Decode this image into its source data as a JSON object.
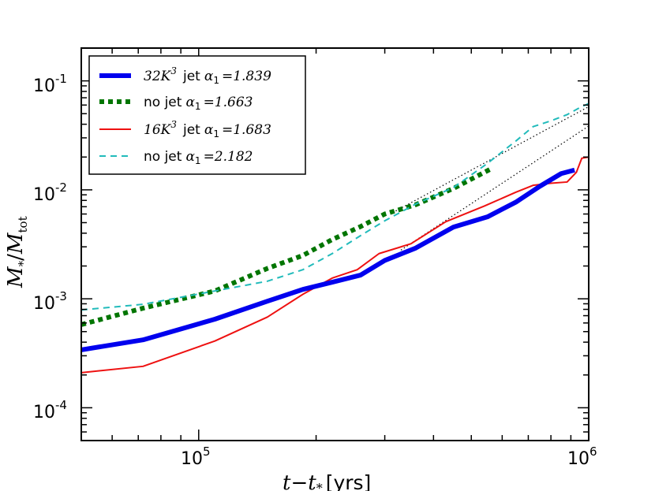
{
  "chart_data": {
    "type": "line",
    "title": "",
    "xscale": "log",
    "yscale": "log",
    "xlim": [
      50000,
      1000000
    ],
    "ylim": [
      5e-05,
      0.2
    ],
    "xlabel": "t−t",
    "xlabel_sub": "*",
    "xlabel_unit": "[yrs]",
    "ylabel": "M",
    "ylabel_sub": "*",
    "ylabel_denom": "M",
    "ylabel_denom_sub": "tot",
    "xticks": [
      {
        "value": 100000,
        "base": "10",
        "exp": "5"
      },
      {
        "value": 1000000,
        "base": "10",
        "exp": "6"
      }
    ],
    "yticks": [
      {
        "value": 0.0001,
        "base": "10",
        "exp": "-4"
      },
      {
        "value": 0.001,
        "base": "10",
        "exp": "-3"
      },
      {
        "value": 0.01,
        "base": "10",
        "exp": "-2"
      },
      {
        "value": 0.1,
        "base": "10",
        "exp": "-1"
      }
    ],
    "legend_position": "top-left",
    "series": [
      {
        "name": "32K³ jet",
        "legend_math": "32K",
        "legend_sup": "3",
        "legend_word": "jet",
        "alpha_text": "α",
        "alpha_sub": "1",
        "alpha_value": "=1.839",
        "color": "#0000ee",
        "style": "solid-thick",
        "points": [
          [
            50000,
            0.00034
          ],
          [
            72000,
            0.00042
          ],
          [
            110000,
            0.00065
          ],
          [
            150000,
            0.00095
          ],
          [
            185000,
            0.00122
          ],
          [
            220000,
            0.00142
          ],
          [
            260000,
            0.00165
          ],
          [
            300000,
            0.00225
          ],
          [
            360000,
            0.00292
          ],
          [
            450000,
            0.00455
          ],
          [
            550000,
            0.00565
          ],
          [
            650000,
            0.0077
          ],
          [
            750000,
            0.0108
          ],
          [
            850000,
            0.0141
          ],
          [
            920000,
            0.0152
          ]
        ]
      },
      {
        "name": "no jet",
        "legend_word": "no jet",
        "alpha_text": "α",
        "alpha_sub": "1",
        "alpha_value": "=1.663",
        "color": "#007500",
        "style": "dotted-thick",
        "points": [
          [
            50000,
            0.00058
          ],
          [
            72000,
            0.00082
          ],
          [
            110000,
            0.00118
          ],
          [
            150000,
            0.0019
          ],
          [
            185000,
            0.0025
          ],
          [
            220000,
            0.0035
          ],
          [
            260000,
            0.0046
          ],
          [
            300000,
            0.006
          ],
          [
            360000,
            0.0073
          ],
          [
            450000,
            0.0103
          ],
          [
            560000,
            0.0155
          ]
        ]
      },
      {
        "name": "16K³ jet",
        "legend_math": "16K",
        "legend_sup": "3",
        "legend_word": "jet",
        "alpha_text": "α",
        "alpha_sub": "1",
        "alpha_value": "=1.683",
        "color": "#ee1111",
        "style": "solid",
        "points": [
          [
            50000,
            0.00021
          ],
          [
            72000,
            0.00024
          ],
          [
            110000,
            0.00041
          ],
          [
            150000,
            0.00068
          ],
          [
            185000,
            0.0011
          ],
          [
            220000,
            0.00155
          ],
          [
            255000,
            0.00185
          ],
          [
            290000,
            0.0026
          ],
          [
            350000,
            0.0032
          ],
          [
            430000,
            0.0051
          ],
          [
            540000,
            0.0071
          ],
          [
            650000,
            0.0095
          ],
          [
            720000,
            0.011
          ],
          [
            800000,
            0.0115
          ],
          [
            880000,
            0.0118
          ],
          [
            930000,
            0.0145
          ],
          [
            960000,
            0.0195
          ],
          [
            1000000,
            0.02
          ]
        ]
      },
      {
        "name": "no jet",
        "legend_word": "no jet",
        "alpha_text": "α",
        "alpha_sub": "1",
        "alpha_value": "=2.182",
        "color": "#22bbbb",
        "style": "dashed",
        "points": [
          [
            50000,
            0.00079
          ],
          [
            72000,
            0.00089
          ],
          [
            110000,
            0.00118
          ],
          [
            150000,
            0.00145
          ],
          [
            185000,
            0.00185
          ],
          [
            220000,
            0.0026
          ],
          [
            260000,
            0.0038
          ],
          [
            300000,
            0.0052
          ],
          [
            360000,
            0.0074
          ],
          [
            450000,
            0.0105
          ],
          [
            550000,
            0.0175
          ],
          [
            650000,
            0.028
          ],
          [
            720000,
            0.038
          ],
          [
            800000,
            0.043
          ],
          [
            880000,
            0.049
          ],
          [
            950000,
            0.057
          ],
          [
            1000000,
            0.062
          ]
        ]
      }
    ],
    "fits": [
      {
        "name": "fit-upper",
        "color": "#000000",
        "points": [
          [
            320000,
            0.0064
          ],
          [
            1000000,
            0.058
          ]
        ]
      },
      {
        "name": "fit-lower",
        "color": "#000000",
        "points": [
          [
            330000,
            0.0028
          ],
          [
            1000000,
            0.0385
          ]
        ]
      }
    ]
  }
}
